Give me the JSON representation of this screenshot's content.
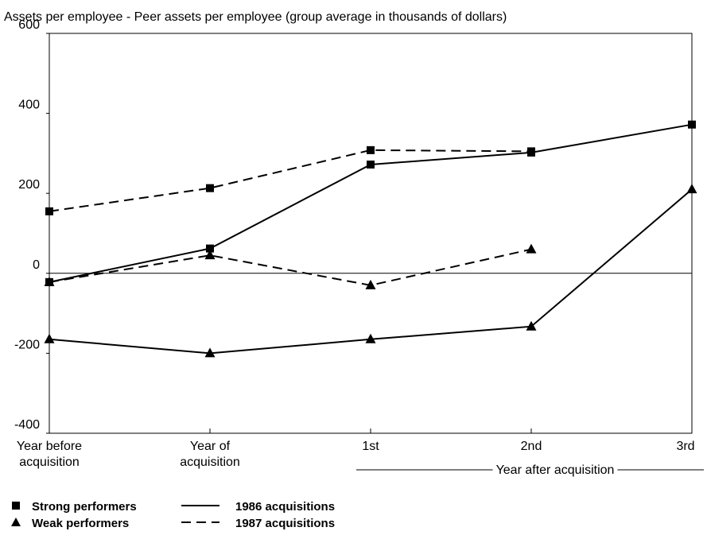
{
  "chart_data": {
    "type": "line",
    "title": "Assets per employee - Peer assets per employee (group average in thousands of dollars)",
    "categories": [
      "Year before\nacquisition",
      "Year of\nacquisition",
      "1st",
      "2nd",
      "3rd"
    ],
    "x_group_label": "Year after acquisition",
    "line_styles": [
      {
        "name": "1986 acquisitions",
        "dash": "none"
      },
      {
        "name": "1987 acquisitions",
        "dash": "12 7"
      }
    ],
    "series": [
      {
        "name": "Strong performers",
        "marker": "square",
        "color": "#000000",
        "values": [
          [
            -22,
            62,
            272,
            302,
            372
          ],
          [
            155,
            213,
            308,
            305,
            null
          ]
        ]
      },
      {
        "name": "Weak performers",
        "marker": "triangle",
        "color": "#000000",
        "values": [
          [
            -165,
            -200,
            -165,
            -133,
            210
          ],
          [
            -22,
            45,
            -30,
            60,
            null
          ]
        ]
      }
    ],
    "ylim": [
      -400,
      600
    ],
    "yticks": [
      -400,
      -200,
      0,
      200,
      400,
      600
    ]
  }
}
